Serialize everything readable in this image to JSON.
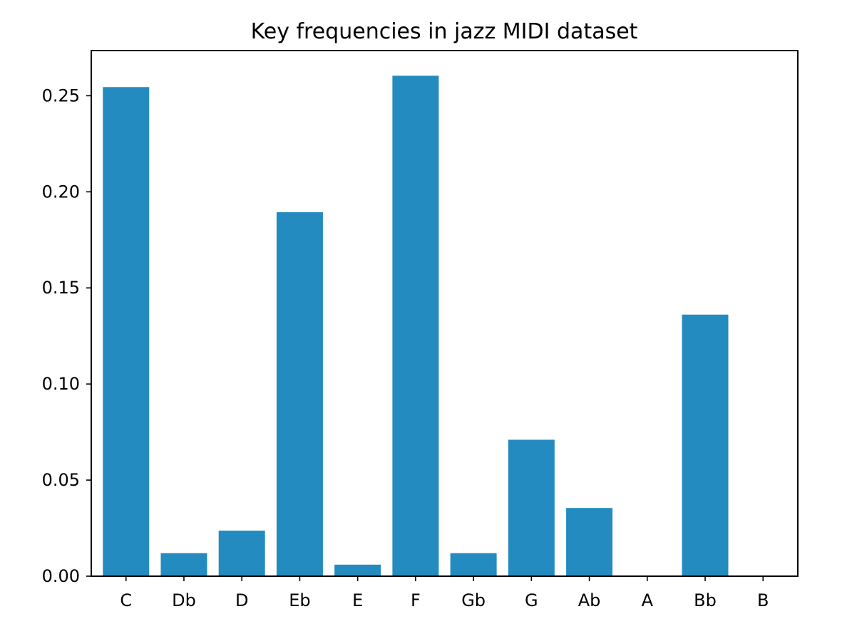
{
  "chart_data": {
    "type": "bar",
    "title": "Key frequencies in jazz MIDI dataset",
    "xlabel": "",
    "ylabel": "",
    "categories": [
      "C",
      "Db",
      "D",
      "Eb",
      "E",
      "F",
      "Gb",
      "G",
      "Ab",
      "A",
      "Bb",
      "B"
    ],
    "values": [
      0.2545,
      0.012,
      0.0237,
      0.1894,
      0.006,
      0.2604,
      0.012,
      0.071,
      0.0355,
      0.0,
      0.1361,
      0.0
    ],
    "ylim": [
      0,
      0.2735
    ],
    "yticks": [
      0.0,
      0.05,
      0.1,
      0.15,
      0.2,
      0.25
    ],
    "ytick_labels": [
      "0.00",
      "0.05",
      "0.10",
      "0.15",
      "0.20",
      "0.25"
    ],
    "grid": false,
    "legend": "none",
    "bar_color": "#238bc0"
  }
}
